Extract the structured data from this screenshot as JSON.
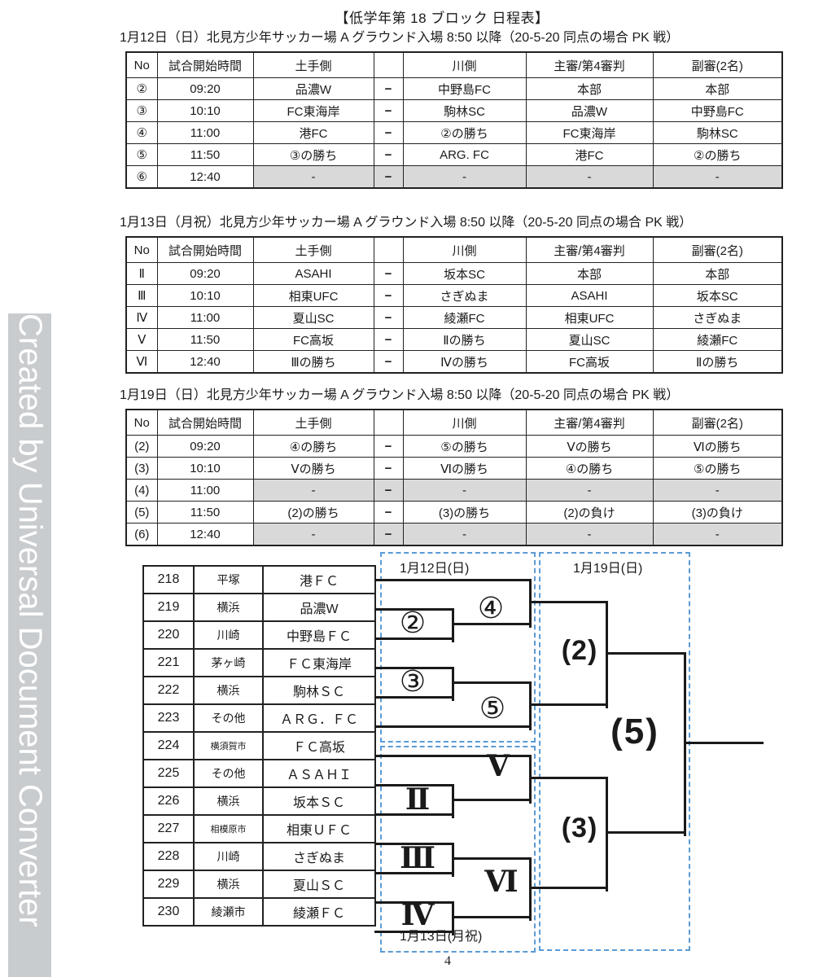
{
  "page": {
    "title": "【低学年第 18 ブロック 日程表】",
    "page_number": "4"
  },
  "watermark": {
    "text": "Created by Universal Document Converter"
  },
  "schedules": [
    {
      "caption": "1月12日（日）北見方少年サッカー場 A グラウンド入場 8:50 以降（20-5-20 同点の場合 PK 戦）",
      "headers": [
        "No",
        "試合開始時間",
        "土手側",
        "",
        "川側",
        "主審/第4審判",
        "副審(2名)"
      ],
      "rows": [
        {
          "cells": [
            "②",
            "09:20",
            "品濃W",
            "−",
            "中野島FC",
            "本部",
            "本部"
          ],
          "gray": false
        },
        {
          "cells": [
            "③",
            "10:10",
            "FC東海岸",
            "−",
            "駒林SC",
            "品濃W",
            "中野島FC"
          ],
          "gray": false
        },
        {
          "cells": [
            "④",
            "11:00",
            "港FC",
            "−",
            "②の勝ち",
            "FC東海岸",
            "駒林SC"
          ],
          "gray": false
        },
        {
          "cells": [
            "⑤",
            "11:50",
            "③の勝ち",
            "−",
            "ARG. FC",
            "港FC",
            "②の勝ち"
          ],
          "gray": false
        },
        {
          "cells": [
            "⑥",
            "12:40",
            "-",
            "−",
            "-",
            "-",
            "-"
          ],
          "gray": true
        }
      ]
    },
    {
      "caption": "1月13日（月祝）北見方少年サッカー場 A グラウンド入場 8:50 以降（20-5-20 同点の場合 PK 戦）",
      "headers": [
        "No",
        "試合開始時間",
        "土手側",
        "",
        "川側",
        "主審/第4審判",
        "副審(2名)"
      ],
      "rows": [
        {
          "cells": [
            "Ⅱ",
            "09:20",
            "ASAHI",
            "−",
            "坂本SC",
            "本部",
            "本部"
          ],
          "gray": false
        },
        {
          "cells": [
            "Ⅲ",
            "10:10",
            "相東UFC",
            "−",
            "さぎぬま",
            "ASAHI",
            "坂本SC"
          ],
          "gray": false
        },
        {
          "cells": [
            "Ⅳ",
            "11:00",
            "夏山SC",
            "−",
            "綾瀬FC",
            "相東UFC",
            "さぎぬま"
          ],
          "gray": false
        },
        {
          "cells": [
            "Ⅴ",
            "11:50",
            "FC高坂",
            "−",
            "Ⅱの勝ち",
            "夏山SC",
            "綾瀬FC"
          ],
          "gray": false
        },
        {
          "cells": [
            "Ⅵ",
            "12:40",
            "Ⅲの勝ち",
            "−",
            "Ⅳの勝ち",
            "FC高坂",
            "Ⅱの勝ち"
          ],
          "gray": false
        }
      ]
    },
    {
      "caption": "1月19日（日）北見方少年サッカー場 A グラウンド入場 8:50 以降（20-5-20 同点の場合 PK 戦）",
      "headers": [
        "No",
        "試合開始時間",
        "土手側",
        "",
        "川側",
        "主審/第4審判",
        "副審(2名)"
      ],
      "rows": [
        {
          "cells": [
            "(2)",
            "09:20",
            "④の勝ち",
            "−",
            "⑤の勝ち",
            "Ⅴの勝ち",
            "Ⅵの勝ち"
          ],
          "gray": false
        },
        {
          "cells": [
            "(3)",
            "10:10",
            "Ⅴの勝ち",
            "−",
            "Ⅵの勝ち",
            "④の勝ち",
            "⑤の勝ち"
          ],
          "gray": false
        },
        {
          "cells": [
            "(4)",
            "11:00",
            "-",
            "−",
            "-",
            "-",
            "-"
          ],
          "gray": true
        },
        {
          "cells": [
            "(5)",
            "11:50",
            "(2)の勝ち",
            "−",
            "(3)の勝ち",
            "(2)の負け",
            "(3)の負け"
          ],
          "gray": false
        },
        {
          "cells": [
            "(6)",
            "12:40",
            "-",
            "−",
            "-",
            "-",
            "-"
          ],
          "gray": true
        }
      ]
    }
  ],
  "bracket": {
    "teams": [
      {
        "no": "218",
        "city": "平塚",
        "name": "港ＦＣ"
      },
      {
        "no": "219",
        "city": "横浜",
        "name": "品濃W"
      },
      {
        "no": "220",
        "city": "川崎",
        "name": "中野島ＦＣ"
      },
      {
        "no": "221",
        "city": "茅ヶ崎",
        "name": "ＦＣ東海岸"
      },
      {
        "no": "222",
        "city": "横浜",
        "name": "駒林ＳＣ"
      },
      {
        "no": "223",
        "city": "その他",
        "name": "ＡＲＧ．ＦＣ"
      },
      {
        "no": "224",
        "city": "横須賀市",
        "name": "ＦＣ高坂"
      },
      {
        "no": "225",
        "city": "その他",
        "name": "ＡＳＡＨＩ"
      },
      {
        "no": "226",
        "city": "横浜",
        "name": "坂本ＳＣ"
      },
      {
        "no": "227",
        "city": "相模原市",
        "name": "相東ＵＦＣ"
      },
      {
        "no": "228",
        "city": "川崎",
        "name": "さぎぬま"
      },
      {
        "no": "229",
        "city": "横浜",
        "name": "夏山ＳＣ"
      },
      {
        "no": "230",
        "city": "綾瀬市",
        "name": "綾瀬ＦＣ"
      }
    ],
    "round1_labels": [
      "②",
      "③",
      "Ⅱ",
      "Ⅲ",
      "Ⅳ"
    ],
    "round2_labels": [
      "④",
      "⑤",
      "Ⅴ",
      "Ⅵ"
    ],
    "round3_labels": [
      "(2)",
      "(3)"
    ],
    "final_label": "(5)",
    "date_boxes": [
      {
        "label": "1月12日(日)"
      },
      {
        "label": "1月13日(月祝)"
      },
      {
        "label": "1月19日(日)"
      }
    ]
  },
  "colors": {
    "dashed_box": "#5b9bd5",
    "gray_cell": "#d9d9d9",
    "line": "#1a1a1a",
    "watermark_bg": "#c9ccce"
  }
}
